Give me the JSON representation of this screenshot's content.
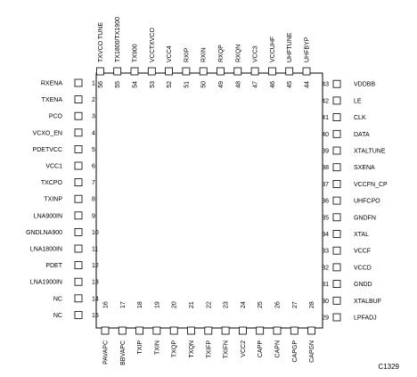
{
  "figure_id": "C1329",
  "pins": [
    {
      "num": "1",
      "name": "RXENA"
    },
    {
      "num": "2",
      "name": "TXENA"
    },
    {
      "num": "3",
      "name": "PCO"
    },
    {
      "num": "4",
      "name": "VCXO_EN"
    },
    {
      "num": "5",
      "name": "PDETVCC"
    },
    {
      "num": "6",
      "name": "VCC1"
    },
    {
      "num": "7",
      "name": "TXCPO"
    },
    {
      "num": "8",
      "name": "TXINP"
    },
    {
      "num": "9",
      "name": "LNA900IN"
    },
    {
      "num": "10",
      "name": "GNDLNA900"
    },
    {
      "num": "11",
      "name": "LNA1800IN"
    },
    {
      "num": "12",
      "name": "PDET"
    },
    {
      "num": "13",
      "name": "LNA1900IN"
    },
    {
      "num": "14",
      "name": "NC"
    },
    {
      "num": "15",
      "name": "NC"
    },
    {
      "num": "16",
      "name": "PAVAPC"
    },
    {
      "num": "17",
      "name": "BBVAPC"
    },
    {
      "num": "18",
      "name": "TXIP"
    },
    {
      "num": "19",
      "name": "TXIN"
    },
    {
      "num": "20",
      "name": "TXQP"
    },
    {
      "num": "21",
      "name": "TXQN"
    },
    {
      "num": "22",
      "name": "TXIFP"
    },
    {
      "num": "23",
      "name": "TXIFN"
    },
    {
      "num": "24",
      "name": "VCC2"
    },
    {
      "num": "25",
      "name": "CAPP"
    },
    {
      "num": "26",
      "name": "CAPN"
    },
    {
      "num": "27",
      "name": "CAPGP"
    },
    {
      "num": "28",
      "name": "CAPGN"
    },
    {
      "num": "29",
      "name": "LPFADJ"
    },
    {
      "num": "30",
      "name": "XTALBUF"
    },
    {
      "num": "31",
      "name": "GNDD"
    },
    {
      "num": "32",
      "name": "VCCD"
    },
    {
      "num": "33",
      "name": "VCCF"
    },
    {
      "num": "34",
      "name": "XTAL"
    },
    {
      "num": "35",
      "name": "GNDFN"
    },
    {
      "num": "36",
      "name": "UHFCPO"
    },
    {
      "num": "37",
      "name": "VCCFN_CP"
    },
    {
      "num": "38",
      "name": "SXENA"
    },
    {
      "num": "39",
      "name": "XTALTUNE"
    },
    {
      "num": "40",
      "name": "DATA"
    },
    {
      "num": "41",
      "name": "CLK"
    },
    {
      "num": "42",
      "name": "LE"
    },
    {
      "num": "43",
      "name": "VDDBB"
    },
    {
      "num": "44",
      "name": "UHFBYP"
    },
    {
      "num": "45",
      "name": "UHFTUNE"
    },
    {
      "num": "46",
      "name": "VCCUHF"
    },
    {
      "num": "47",
      "name": "VCC3"
    },
    {
      "num": "48",
      "name": "RXQN"
    },
    {
      "num": "49",
      "name": "RXQP"
    },
    {
      "num": "50",
      "name": "RXIN"
    },
    {
      "num": "51",
      "name": "RXIP"
    },
    {
      "num": "52",
      "name": "VCC4"
    },
    {
      "num": "53",
      "name": "VCCTXVCO"
    },
    {
      "num": "54",
      "name": "TX900"
    },
    {
      "num": "55",
      "name": "TX1800/TX1900"
    },
    {
      "num": "56",
      "name": "TXVCO TUNE"
    }
  ]
}
